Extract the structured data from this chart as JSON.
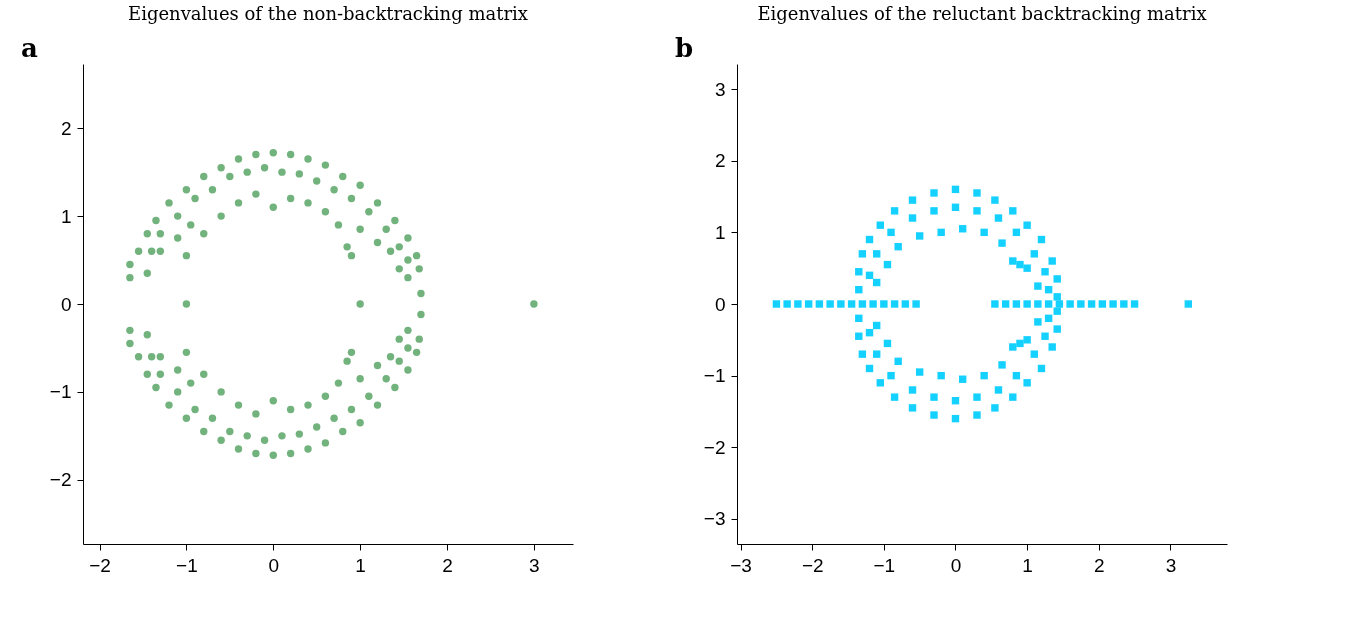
{
  "chart_data": [
    {
      "type": "scatter",
      "title": "Eigenvalues of the non-backtracking matrix",
      "annotations": [
        "a"
      ],
      "marker": "circle",
      "grid": false,
      "xlim": [
        -2.19,
        3.45
      ],
      "ylim": [
        -2.73,
        2.73
      ],
      "xticks": [
        -2,
        -1,
        0,
        1,
        2,
        3
      ],
      "yticks": [
        -2,
        -1,
        0,
        1,
        2
      ],
      "series": [
        {
          "color": "#72b27c",
          "x": [
            -1.65,
            -1.65,
            -1.55,
            -1.45,
            -1.35,
            -1.2,
            -1.0,
            -0.8,
            -0.6,
            -0.4,
            -0.2,
            0,
            0.2,
            0.4,
            0.6,
            0.8,
            1.0,
            1.2,
            1.4,
            1.55,
            1.65,
            1.68,
            -1.4,
            -1.3,
            -1.1,
            -0.9,
            -0.7,
            -0.5,
            -0.3,
            -0.1,
            0.1,
            0.3,
            0.5,
            0.7,
            0.9,
            1.1,
            1.3,
            1.45,
            1.55,
            -1.45,
            -1.3,
            -1.1,
            -0.95,
            -1.0,
            -0.8,
            -0.6,
            -0.4,
            -0.2,
            0,
            0.2,
            0.4,
            0.6,
            0.75,
            0.85,
            0.9,
            1.0,
            1.2,
            1.35,
            1.55,
            1.45,
            -1.65,
            -1.65,
            -1.55,
            -1.45,
            -1.35,
            -1.2,
            -1.0,
            -0.8,
            -0.6,
            -0.4,
            -0.2,
            0,
            0.2,
            0.4,
            0.6,
            0.8,
            1.0,
            1.2,
            1.4,
            1.55,
            1.65,
            1.68,
            -1.4,
            -1.3,
            -1.1,
            -0.9,
            -0.7,
            -0.5,
            -0.3,
            -0.1,
            0.1,
            0.3,
            0.5,
            0.7,
            0.9,
            1.1,
            1.3,
            1.45,
            1.55,
            -1.45,
            -1.3,
            -1.1,
            -0.95,
            -1.0,
            -0.8,
            -0.6,
            -0.4,
            -0.2,
            0,
            0.2,
            0.4,
            0.6,
            0.75,
            0.85,
            0.9,
            1.0,
            1.2,
            1.35,
            1.55,
            1.45,
            -1,
            1,
            3,
            1.7,
            1.7
          ],
          "values": [
            0.3,
            0.45,
            0.6,
            0.8,
            0.95,
            1.15,
            1.3,
            1.45,
            1.55,
            1.65,
            1.7,
            1.72,
            1.7,
            1.65,
            1.58,
            1.45,
            1.35,
            1.15,
            0.95,
            0.75,
            0.55,
            0.4,
            0.6,
            0.8,
            1.0,
            1.2,
            1.3,
            1.45,
            1.5,
            1.55,
            1.5,
            1.48,
            1.4,
            1.3,
            1.2,
            1.05,
            0.85,
            0.65,
            0.5,
            0.35,
            0.6,
            0.75,
            0.9,
            0.55,
            0.8,
            1.0,
            1.15,
            1.25,
            1.1,
            1.2,
            1.15,
            1.05,
            0.9,
            0.65,
            0.55,
            0.85,
            0.7,
            0.6,
            0.3,
            0.4,
            -0.3,
            -0.45,
            -0.6,
            -0.8,
            -0.95,
            -1.15,
            -1.3,
            -1.45,
            -1.55,
            -1.65,
            -1.7,
            -1.72,
            -1.7,
            -1.65,
            -1.58,
            -1.45,
            -1.35,
            -1.15,
            -0.95,
            -0.75,
            -0.55,
            -0.4,
            -0.6,
            -0.8,
            -1.0,
            -1.2,
            -1.3,
            -1.45,
            -1.5,
            -1.55,
            -1.5,
            -1.48,
            -1.4,
            -1.3,
            -1.2,
            -1.05,
            -0.85,
            -0.65,
            -0.5,
            -0.35,
            -0.6,
            -0.75,
            -0.9,
            -0.55,
            -0.8,
            -1.0,
            -1.15,
            -1.25,
            -1.1,
            -1.2,
            -1.15,
            -1.05,
            -0.9,
            -0.65,
            -0.55,
            -0.85,
            -0.7,
            -0.6,
            -0.3,
            -0.4,
            0,
            0,
            0,
            0.12,
            -0.12
          ]
        }
      ]
    },
    {
      "type": "scatter",
      "title": "Eigenvalues of the reluctant backtracking matrix",
      "annotations": [
        "b"
      ],
      "marker": "square",
      "grid": false,
      "xlim": [
        -3.05,
        3.79
      ],
      "ylim": [
        -3.35,
        3.35
      ],
      "xticks": [
        -3,
        -2,
        -1,
        0,
        1,
        2,
        3
      ],
      "yticks": [
        -3,
        -2,
        -1,
        0,
        1,
        2,
        3
      ],
      "series": [
        {
          "color": "#15d1ff",
          "x": [
            -1.35,
            -1.35,
            -1.3,
            -1.2,
            -1.05,
            -0.85,
            -0.6,
            -0.3,
            0,
            0.3,
            0.55,
            0.8,
            1.0,
            1.2,
            1.35,
            1.42,
            1.42,
            -1.2,
            -1.1,
            -0.9,
            -0.6,
            -0.3,
            0,
            0.3,
            0.6,
            0.85,
            1.1,
            1.25,
            1.3,
            -1.1,
            -0.95,
            -0.8,
            -0.5,
            -0.2,
            0.1,
            0.4,
            0.65,
            0.8,
            1.0,
            1.15,
            0.9,
            -1.35,
            -1.35,
            -1.3,
            -1.2,
            -1.05,
            -0.85,
            -0.6,
            -0.3,
            0,
            0.3,
            0.55,
            0.8,
            1.0,
            1.2,
            1.35,
            1.42,
            1.42,
            -1.2,
            -1.1,
            -0.9,
            -0.6,
            -0.3,
            0,
            0.3,
            0.6,
            0.85,
            1.1,
            1.25,
            1.3,
            -1.1,
            -0.95,
            -0.8,
            -0.5,
            -0.2,
            0.1,
            0.4,
            0.65,
            0.8,
            1.0,
            1.15,
            0.9,
            -2.5,
            -2.35,
            -2.2,
            -2.05,
            -1.9,
            -1.75,
            -1.6,
            -1.45,
            -1.3,
            -1.15,
            -1.0,
            -0.85,
            -0.7,
            -0.55,
            0.55,
            0.7,
            0.85,
            1.0,
            1.15,
            1.3,
            1.45,
            1.6,
            1.75,
            1.9,
            2.05,
            2.2,
            2.35,
            2.5,
            3.25
          ],
          "values": [
            0.2,
            0.45,
            0.7,
            0.9,
            1.1,
            1.3,
            1.45,
            1.55,
            1.6,
            1.55,
            1.45,
            1.3,
            1.1,
            0.9,
            0.6,
            0.35,
            0.1,
            0.4,
            0.7,
            1.0,
            1.2,
            1.3,
            1.35,
            1.3,
            1.2,
            1.0,
            0.7,
            0.45,
            0.2,
            0.3,
            0.55,
            0.8,
            0.95,
            1.0,
            1.05,
            1.0,
            0.85,
            0.6,
            0.5,
            0.25,
            0.55,
            -0.2,
            -0.45,
            -0.7,
            -0.9,
            -1.1,
            -1.3,
            -1.45,
            -1.55,
            -1.6,
            -1.55,
            -1.45,
            -1.3,
            -1.1,
            -0.9,
            -0.6,
            -0.35,
            -0.1,
            -0.4,
            -0.7,
            -1.0,
            -1.2,
            -1.3,
            -1.35,
            -1.3,
            -1.2,
            -1.0,
            -0.7,
            -0.45,
            -0.2,
            -0.3,
            -0.55,
            -0.8,
            -0.95,
            -1.0,
            -1.05,
            -1.0,
            -0.85,
            -0.6,
            -0.5,
            -0.25,
            -0.55,
            0,
            0,
            0,
            0,
            0,
            0,
            0,
            0,
            0,
            0,
            0,
            0,
            0,
            0,
            0,
            0,
            0,
            0,
            0,
            0,
            0,
            0,
            0,
            0,
            0,
            0,
            0,
            0,
            0
          ]
        }
      ]
    }
  ]
}
